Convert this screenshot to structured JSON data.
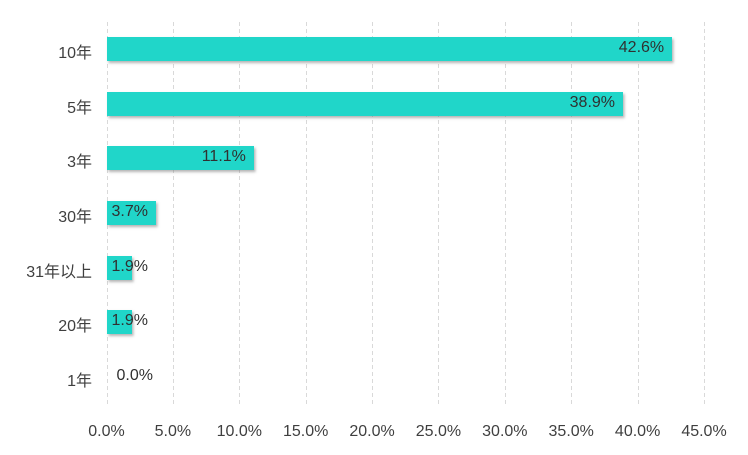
{
  "chart_data": {
    "type": "bar",
    "orientation": "horizontal",
    "title": "",
    "xlabel": "",
    "ylabel": "",
    "categories": [
      "10年",
      "5年",
      "3年",
      "30年",
      "31年以上",
      "20年",
      "1年"
    ],
    "values": [
      42.6,
      38.9,
      11.1,
      3.7,
      1.9,
      1.9,
      0.0
    ],
    "data_labels": [
      "42.6%",
      "38.9%",
      "11.1%",
      "3.7%",
      "1.9%",
      "1.9%",
      "0.0%"
    ],
    "xlim": [
      0,
      45
    ],
    "x_tick_step": 5,
    "x_tick_labels": [
      "0.0%",
      "5.0%",
      "10.0%",
      "15.0%",
      "20.0%",
      "25.0%",
      "30.0%",
      "35.0%",
      "40.0%",
      "45.0%"
    ],
    "grid": "vertical-dashed",
    "legend": "none",
    "colors": {
      "bar_fill": "#20d6c9",
      "gridline": "#d9d9d9",
      "axis_text": "#3f3f3f",
      "data_label_text": "#303030",
      "background": "#ffffff"
    }
  }
}
